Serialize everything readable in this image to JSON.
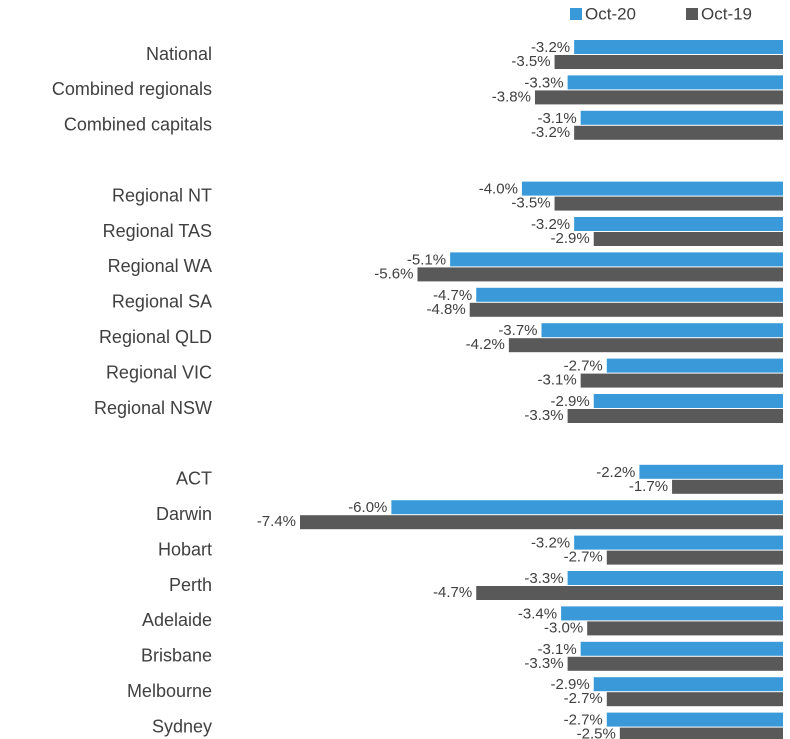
{
  "chart_data": {
    "type": "bar",
    "orientation": "horizontal",
    "categories": [
      "National",
      "Combined regionals",
      "Combined capitals",
      null,
      "Regional NT",
      "Regional TAS",
      "Regional WA",
      "Regional SA",
      "Regional QLD",
      "Regional VIC",
      "Regional NSW",
      null,
      "ACT",
      "Darwin",
      "Hobart",
      "Perth",
      "Adelaide",
      "Brisbane",
      "Melbourne",
      "Sydney"
    ],
    "series": [
      {
        "name": "Oct-20",
        "color": "#3a9ad9",
        "values": [
          -3.2,
          -3.3,
          -3.1,
          null,
          -4.0,
          -3.2,
          -5.1,
          -4.7,
          -3.7,
          -2.7,
          -2.9,
          null,
          -2.2,
          -6.0,
          -3.2,
          -3.3,
          -3.4,
          -3.1,
          -2.9,
          -2.7
        ],
        "value_labels": [
          "-3.2%",
          "-3.3%",
          "-3.1%",
          null,
          "-4.0%",
          "-3.2%",
          "-5.1%",
          "-4.7%",
          "-3.7%",
          "-2.7%",
          "-2.9%",
          null,
          "-2.2%",
          "-6.0%",
          "-3.2%",
          "-3.3%",
          "-3.4%",
          "-3.1%",
          "-2.9%",
          "-2.7%"
        ]
      },
      {
        "name": "Oct-19",
        "color": "#595959",
        "values": [
          -3.5,
          -3.8,
          -3.2,
          null,
          -3.5,
          -2.9,
          -5.6,
          -4.8,
          -4.2,
          -3.1,
          -3.3,
          null,
          -1.7,
          -7.4,
          -2.7,
          -4.7,
          -3.0,
          -3.3,
          -2.7,
          -2.5
        ],
        "value_labels": [
          "-3.5%",
          "-3.8%",
          "-3.2%",
          null,
          "-3.5%",
          "-2.9%",
          "-5.6%",
          "-4.8%",
          "-4.2%",
          "-3.1%",
          "-3.3%",
          null,
          "-1.7%",
          "-7.4%",
          "-2.7%",
          "-4.7%",
          "-3.0%",
          "-3.3%",
          "-2.7%",
          "-2.5%"
        ]
      }
    ],
    "legend": "top-right"
  }
}
